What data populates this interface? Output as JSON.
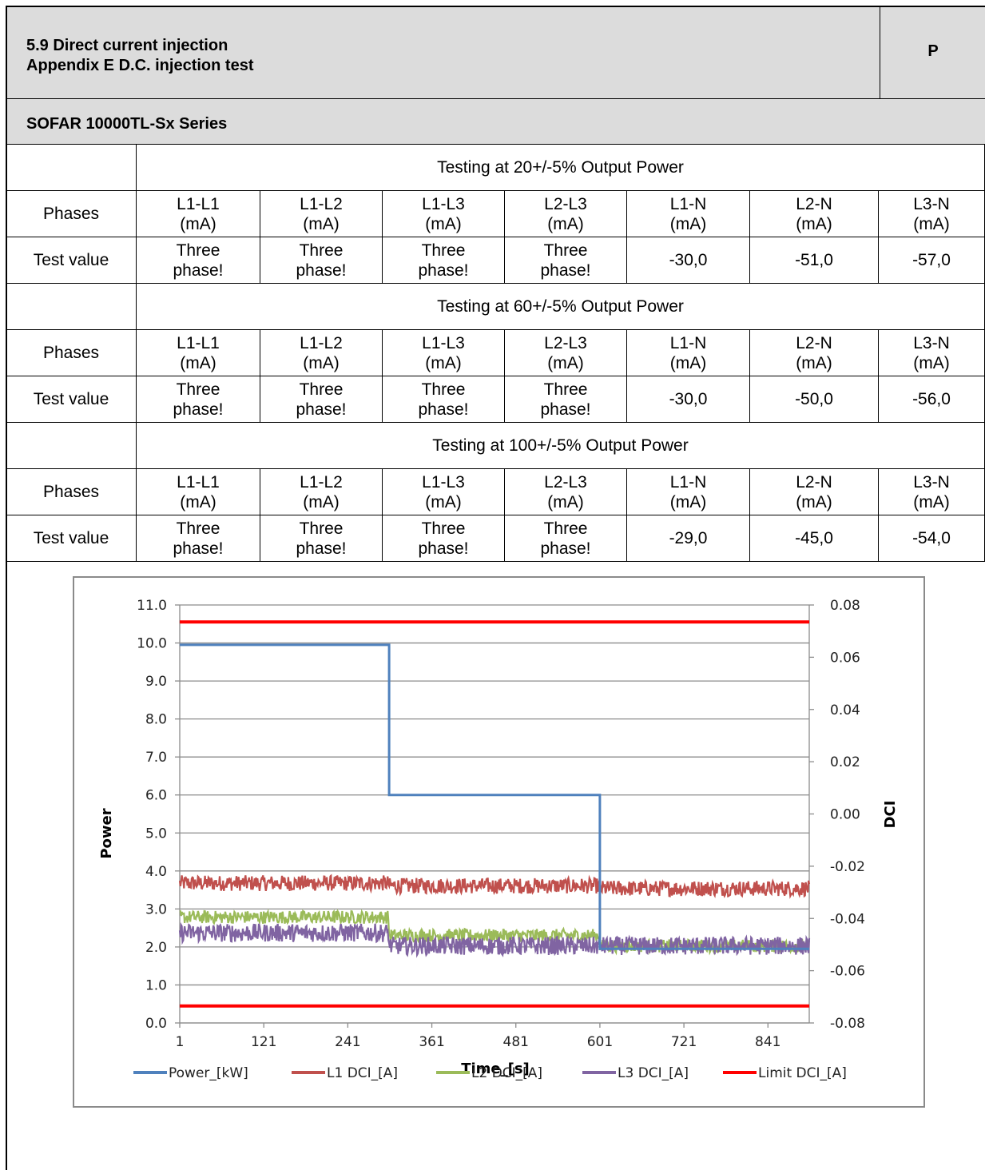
{
  "header": {
    "title_line1": "5.9 Direct current injection",
    "title_line2": "Appendix E  D.C. injection test",
    "verdict": "P"
  },
  "model": "SOFAR 10000TL-Sx Series",
  "sections": [
    {
      "heading": "Testing at 20+/-5% Output Power",
      "phases_label": "Phases",
      "phases": [
        "L1-L1\n(mA)",
        "L1-L2\n(mA)",
        "L1-L3\n(mA)",
        "L2-L3\n(mA)",
        "L1-N\n(mA)",
        "L2-N\n(mA)",
        "L3-N\n(mA)"
      ],
      "value_label": "Test value",
      "values": [
        "Three\nphase!",
        "Three\nphase!",
        "Three\nphase!",
        "Three\nphase!",
        "-30,0",
        "-51,0",
        "-57,0"
      ]
    },
    {
      "heading": "Testing at 60+/-5% Output Power",
      "phases_label": "Phases",
      "phases": [
        "L1-L1\n(mA)",
        "L1-L2\n(mA)",
        "L1-L3\n(mA)",
        "L2-L3\n(mA)",
        "L1-N\n(mA)",
        "L2-N\n(mA)",
        "L3-N\n(mA)"
      ],
      "value_label": "Test value",
      "values": [
        "Three\nphase!",
        "Three\nphase!",
        "Three\nphase!",
        "Three\nphase!",
        "-30,0",
        "-50,0",
        "-56,0"
      ]
    },
    {
      "heading": "Testing at 100+/-5% Output Power",
      "phases_label": "Phases",
      "phases": [
        "L1-L1\n(mA)",
        "L1-L2\n(mA)",
        "L1-L3\n(mA)",
        "L2-L3\n(mA)",
        "L1-N\n(mA)",
        "L2-N\n(mA)",
        "L3-N\n(mA)"
      ],
      "value_label": "Test value",
      "values": [
        "Three\nphase!",
        "Three\nphase!",
        "Three\nphase!",
        "Three\nphase!",
        "-29,0",
        "-45,0",
        "-54,0"
      ]
    }
  ],
  "chart_data": {
    "type": "line",
    "xlabel": "Time_[s]",
    "ylabel": "Power",
    "y2label": "DCI",
    "x_ticks": [
      "1",
      "121",
      "241",
      "361",
      "481",
      "601",
      "721",
      "841"
    ],
    "xlim": [
      1,
      900
    ],
    "ylim": [
      0,
      11
    ],
    "y_ticks": [
      "0.0",
      "1.0",
      "2.0",
      "3.0",
      "4.0",
      "5.0",
      "6.0",
      "7.0",
      "8.0",
      "9.0",
      "10.0",
      "11.0"
    ],
    "y2lim": [
      -0.08,
      0.08
    ],
    "y2_ticks": [
      "-0.08",
      "-0.06",
      "-0.04",
      "-0.02",
      "0.00",
      "0.02",
      "0.04",
      "0.06",
      "0.08"
    ],
    "grid": true,
    "legend_position": "bottom",
    "series": [
      {
        "name": "Power_[kW]",
        "color": "#4f81bd",
        "axis": "left",
        "points": [
          [
            1,
            9.95
          ],
          [
            300,
            9.95
          ],
          [
            300,
            6.0
          ],
          [
            601,
            6.0
          ],
          [
            601,
            1.95
          ],
          [
            900,
            1.95
          ]
        ]
      },
      {
        "name": "L1 DCI_[A]",
        "color": "#c0504d",
        "axis": "right",
        "segments": [
          [
            1,
            300,
            -0.0265
          ],
          [
            300,
            601,
            -0.0275
          ],
          [
            601,
            900,
            -0.0285
          ]
        ],
        "noise": 0.003
      },
      {
        "name": "L2 DCI_[A]",
        "color": "#9bbb59",
        "axis": "right",
        "segments": [
          [
            1,
            300,
            -0.0395
          ],
          [
            300,
            601,
            -0.0465
          ],
          [
            601,
            900,
            -0.0505
          ]
        ],
        "noise": 0.0025
      },
      {
        "name": "L3 DCI_[A]",
        "color": "#8064a2",
        "axis": "right",
        "segments": [
          [
            1,
            300,
            -0.0455
          ],
          [
            300,
            601,
            -0.0505
          ],
          [
            601,
            900,
            -0.0505
          ]
        ],
        "noise": 0.0035
      },
      {
        "name": "Limit DCI_[A]",
        "color": "#ff0000",
        "axis": "right",
        "limits": [
          0.0735,
          -0.0735
        ]
      }
    ]
  }
}
